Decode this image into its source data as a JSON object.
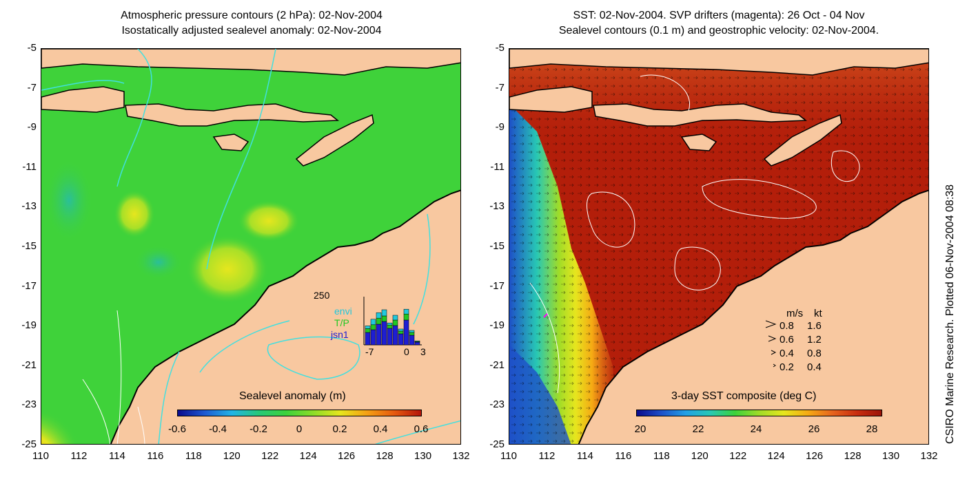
{
  "left_map": {
    "title_line1": "Atmospheric pressure contours (2 hPa): 02-Nov-2004",
    "title_line2": "Isostatically adjusted sealevel anomaly: 02-Nov-2004",
    "colorbar_title": "Sealevel anomaly (m)",
    "colorbar_ticks": [
      "-0.6",
      "-0.4",
      "-0.2",
      "0",
      "0.2",
      "0.4",
      "0.6"
    ],
    "colorbar_colors": [
      "#0a0a8c",
      "#1e5ad2",
      "#22b4e6",
      "#28c878",
      "#3cd23c",
      "#8cdc28",
      "#e6e61e",
      "#f5a014",
      "#e65a0f",
      "#b4140a"
    ],
    "inset": {
      "ymax_label": "250",
      "legend": [
        {
          "label": "envi",
          "color": "#22c8dc"
        },
        {
          "label": "T/P",
          "color": "#22c822"
        },
        {
          "label": "jsn1",
          "color": "#1e1ed2"
        }
      ],
      "x_labels": [
        "-7",
        "0",
        "3"
      ]
    }
  },
  "right_map": {
    "title_line1": "SST: 02-Nov-2004. SVP drifters (magenta): 26 Oct - 04 Nov",
    "title_line2": "Sealevel contours (0.1 m) and geostrophic velocity: 02-Nov-2004.",
    "colorbar_title": "3-day SST composite (deg C)",
    "colorbar_ticks": [
      "20",
      "22",
      "24",
      "26",
      "28"
    ],
    "colorbar_colors": [
      "#0a0a8c",
      "#1e50c8",
      "#22a0e6",
      "#28c8b4",
      "#3cd23c",
      "#a0dc28",
      "#e6e61e",
      "#f5aa14",
      "#e6641e",
      "#c82d0f",
      "#9b1409"
    ],
    "velocity_legend": {
      "header_ms": "m/s",
      "header_kt": "kt",
      "rows": [
        {
          "ms": "0.8",
          "kt": "1.6"
        },
        {
          "ms": "0.6",
          "kt": "1.2"
        },
        {
          "ms": "0.4",
          "kt": "0.8"
        },
        {
          "ms": "0.2",
          "kt": "0.4"
        }
      ]
    }
  },
  "axes": {
    "y_ticks": [
      "-5",
      "-7",
      "-9",
      "-11",
      "-13",
      "-15",
      "-17",
      "-19",
      "-21",
      "-23",
      "-25"
    ],
    "x_ticks": [
      "110",
      "112",
      "114",
      "116",
      "118",
      "120",
      "122",
      "124",
      "126",
      "128",
      "130",
      "132"
    ]
  },
  "credit": "CSIRO Marine Research. Plotted 06-Nov-2004 08:38",
  "colors": {
    "land": "#f8c8a0",
    "left_sea": "#3fd23a",
    "right_sea": "#b31e0a",
    "pressure_contour": "#40e0e0",
    "sealevel_contour": "#ffffff"
  }
}
